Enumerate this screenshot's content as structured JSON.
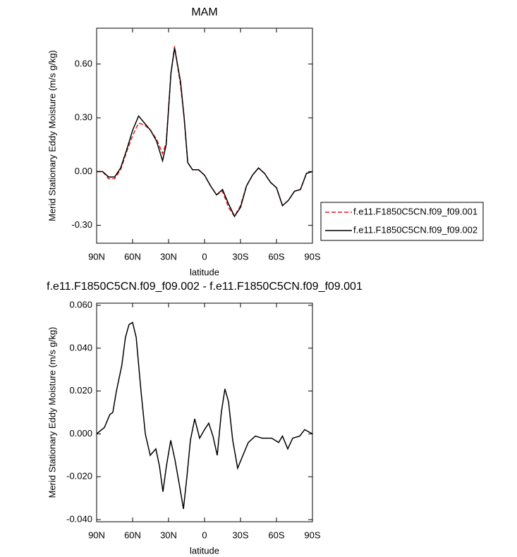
{
  "chart_data": [
    {
      "type": "line",
      "title": "MAM",
      "xlabel": "latitude",
      "ylabel": "Merid Stationary Eddy Moisture (m/s g/kg)",
      "x": [
        90,
        85,
        80,
        75,
        70,
        65,
        60,
        55,
        50,
        45,
        40,
        35,
        32,
        28,
        25,
        20,
        17,
        14,
        10,
        5,
        0,
        -5,
        -10,
        -15,
        -20,
        -25,
        -30,
        -35,
        -40,
        -45,
        -50,
        -55,
        -60,
        -65,
        -70,
        -75,
        -80,
        -85,
        -90
      ],
      "series": [
        {
          "name": "f.e11.F1850C5CN.f09_f09.001",
          "color": "#e41a1c",
          "style": "dashed",
          "values": [
            0.0,
            0.0,
            -0.04,
            -0.04,
            0.01,
            0.11,
            0.2,
            0.27,
            0.26,
            0.23,
            0.18,
            0.1,
            0.16,
            0.55,
            0.7,
            0.48,
            0.3,
            0.05,
            0.01,
            0.01,
            -0.02,
            -0.08,
            -0.13,
            -0.11,
            -0.2,
            -0.25,
            -0.19,
            -0.08,
            -0.02,
            0.02,
            -0.01,
            -0.06,
            -0.09,
            -0.19,
            -0.16,
            -0.11,
            -0.1,
            -0.01,
            0.0
          ]
        },
        {
          "name": "f.e11.F1850C5CN.f09_f09.002",
          "color": "#000000",
          "style": "solid",
          "values": [
            0.0,
            0.0,
            -0.03,
            -0.03,
            0.02,
            0.12,
            0.23,
            0.31,
            0.27,
            0.23,
            0.17,
            0.06,
            0.15,
            0.55,
            0.69,
            0.5,
            0.3,
            0.05,
            0.01,
            0.01,
            -0.02,
            -0.08,
            -0.13,
            -0.1,
            -0.18,
            -0.25,
            -0.2,
            -0.08,
            -0.02,
            0.02,
            -0.01,
            -0.06,
            -0.09,
            -0.19,
            -0.16,
            -0.11,
            -0.1,
            -0.01,
            0.0
          ]
        }
      ],
      "xlim": [
        90,
        -90
      ],
      "xticks": [
        {
          "value": 90,
          "label": "90N"
        },
        {
          "value": 60,
          "label": "60N"
        },
        {
          "value": 30,
          "label": "30N"
        },
        0,
        {
          "value": -30,
          "label": "30S"
        },
        {
          "value": -60,
          "label": "60S"
        },
        {
          "value": -90,
          "label": "90S"
        }
      ],
      "ylim": [
        -0.4,
        0.8
      ],
      "yticks": [
        {
          "value": 0.6,
          "label": "0.60"
        },
        {
          "value": 0.3,
          "label": "0.30"
        },
        {
          "value": 0,
          "label": "0.00"
        },
        {
          "value": -0.3,
          "label": "-0.30"
        }
      ],
      "legend": "right"
    },
    {
      "type": "line",
      "title": "f.e11.F1850C5CN.f09_f09.002 - f.e11.F1850C5CN.f09_f09.001",
      "xlabel": "latitude",
      "ylabel": "Merid Stationary Eddy Moisture (m/s g/kg)",
      "x": [
        90,
        83.5,
        79,
        76.5,
        73.5,
        69,
        66,
        63,
        60,
        57,
        53,
        49.4,
        45.3,
        40.6,
        37.6,
        34.7,
        31.8,
        28.2,
        24.7,
        20.6,
        17.6,
        14.7,
        11.8,
        8.2,
        4.1,
        0,
        -3.5,
        -7,
        -10.6,
        -14,
        -17,
        -20,
        -23.5,
        -27.6,
        -32,
        -36.5,
        -42.4,
        -48,
        -56,
        -61.8,
        -65,
        -69.4,
        -73.5,
        -79.4,
        -83.5,
        -90
      ],
      "series": [
        {
          "color": "#000000",
          "style": "solid",
          "values": [
            0.0,
            0.003,
            0.009,
            0.01,
            0.02,
            0.032,
            0.045,
            0.051,
            0.052,
            0.045,
            0.02,
            0.0,
            -0.01,
            -0.007,
            -0.015,
            -0.027,
            -0.015,
            -0.003,
            -0.012,
            -0.025,
            -0.035,
            -0.02,
            -0.003,
            0.007,
            -0.002,
            0.002,
            0.005,
            -0.001,
            -0.01,
            0.01,
            0.021,
            0.015,
            -0.003,
            -0.016,
            -0.01,
            -0.004,
            -0.001,
            -0.002,
            -0.002,
            -0.004,
            -0.001,
            -0.007,
            -0.002,
            -0.001,
            0.002,
            0.0
          ]
        }
      ],
      "xlim": [
        90,
        -90
      ],
      "xticks": [
        {
          "value": 90,
          "label": "90N"
        },
        {
          "value": 60,
          "label": "60N"
        },
        {
          "value": 30,
          "label": "30N"
        },
        0,
        {
          "value": -30,
          "label": "30S"
        },
        {
          "value": -60,
          "label": "60S"
        },
        {
          "value": -90,
          "label": "90S"
        }
      ],
      "ylim": [
        -0.041,
        0.061
      ],
      "yticks": [
        {
          "value": 0.06,
          "label": "0.060"
        },
        {
          "value": 0.04,
          "label": "0.040"
        },
        {
          "value": 0.02,
          "label": "0.020"
        },
        {
          "value": 0,
          "label": "0.000"
        },
        {
          "value": -0.02,
          "label": "-0.020"
        },
        {
          "value": -0.04,
          "label": "-0.040"
        }
      ]
    }
  ]
}
